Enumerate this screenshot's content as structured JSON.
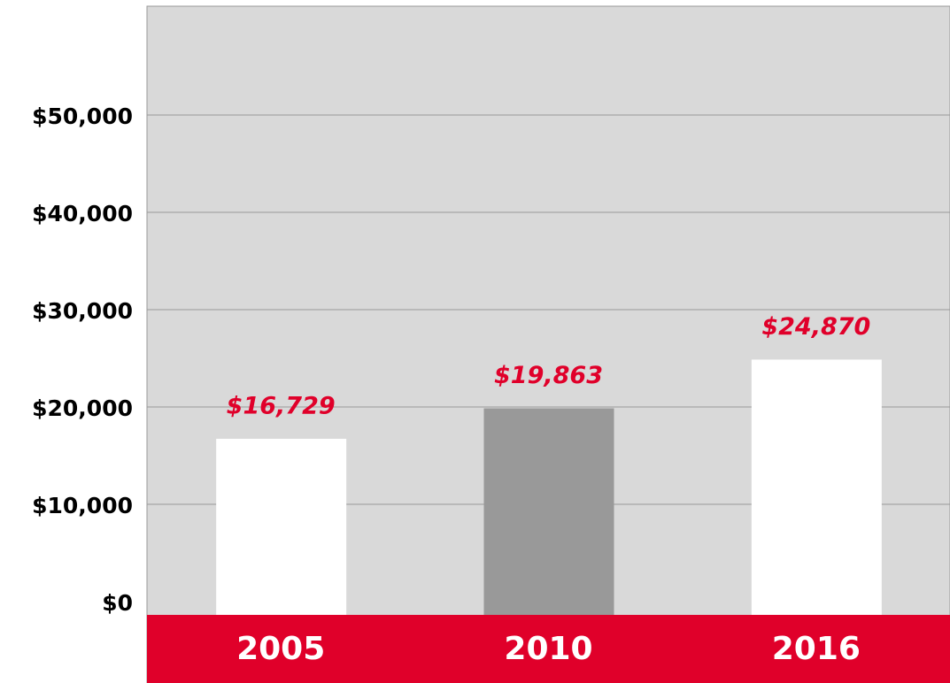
{
  "chart_data": {
    "type": "bar",
    "categories": [
      "2005",
      "2010",
      "2016"
    ],
    "values": [
      16729,
      19863,
      24870
    ],
    "value_labels": [
      "$16,729",
      "$19,863",
      "$24,870"
    ],
    "colors": [
      "#ffffff",
      "#999999",
      "#ffffff"
    ],
    "ylim": [
      0,
      60000
    ],
    "yticks": [
      {
        "value": 0,
        "label": "$0"
      },
      {
        "value": 10000,
        "label": "$10,000"
      },
      {
        "value": 20000,
        "label": "$20,000"
      },
      {
        "value": 30000,
        "label": "$30,000"
      },
      {
        "value": 40000,
        "label": "$40,000"
      },
      {
        "value": 50000,
        "label": "$50,000"
      }
    ],
    "grid": true
  }
}
